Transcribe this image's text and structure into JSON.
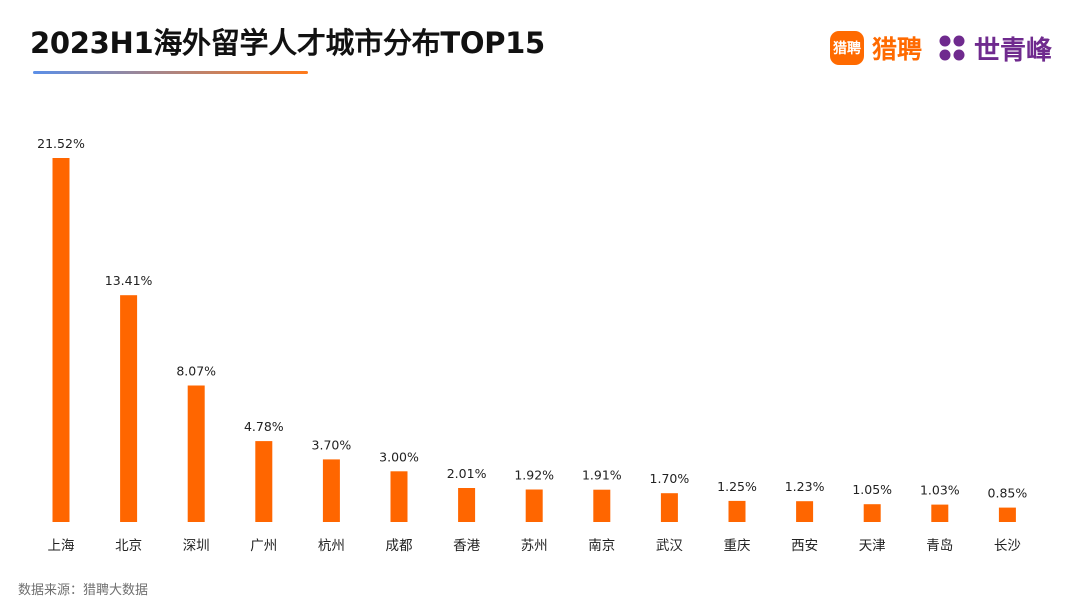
{
  "colors": {
    "bar": "#FF6600",
    "brand_orange": "#FF6A00",
    "brand_purple": "#6F2A8E",
    "title_line_start": "#5B8FE8",
    "title_line_end": "#FF7A1A"
  },
  "branding": {
    "badge_text": "猎聘",
    "logo1_text": "猎聘",
    "logo2_text": "世青峰",
    "logo2_icon": "clover-grid-icon"
  },
  "footer": {
    "source": "数据来源：猎聘大数据"
  },
  "chart_data": {
    "type": "bar",
    "title": "2023H1海外留学人才城市分布TOP15",
    "categories": [
      "上海",
      "北京",
      "深圳",
      "广州",
      "杭州",
      "成都",
      "香港",
      "苏州",
      "南京",
      "武汉",
      "重庆",
      "西安",
      "天津",
      "青岛",
      "长沙"
    ],
    "values": [
      21.52,
      13.41,
      8.07,
      4.78,
      3.7,
      3.0,
      2.01,
      1.92,
      1.91,
      1.7,
      1.25,
      1.23,
      1.05,
      1.03,
      0.85
    ],
    "value_labels": [
      "21.52%",
      "13.41%",
      "8.07%",
      "4.78%",
      "3.70%",
      "3.00%",
      "2.01%",
      "1.92%",
      "1.91%",
      "1.70%",
      "1.25%",
      "1.23%",
      "1.05%",
      "1.03%",
      "0.85%"
    ],
    "xlabel": "",
    "ylabel": "",
    "ylim": [
      0,
      21.52
    ],
    "grid": false,
    "legend": "none"
  }
}
